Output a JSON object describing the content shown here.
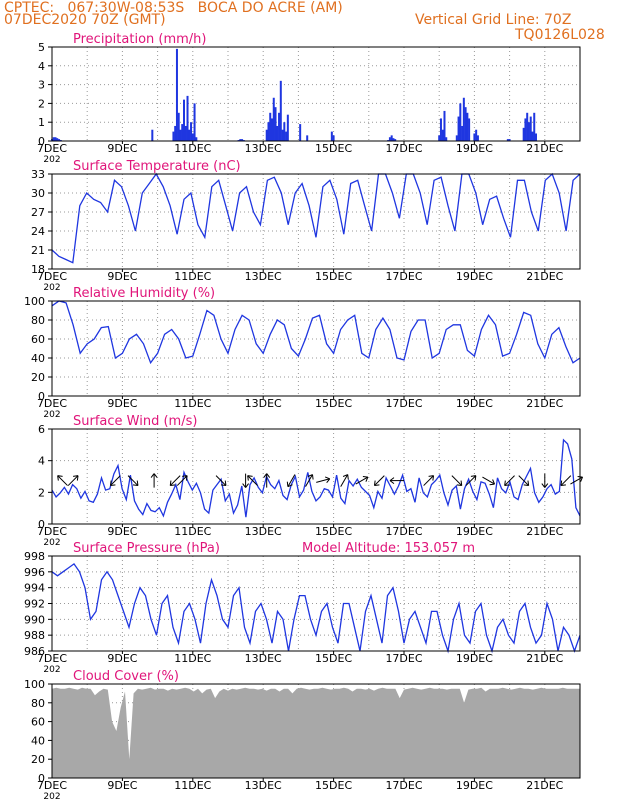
{
  "header": {
    "station_line": "CPTEC:   067:30W-08:53S   BOCA DO ACRE (AM)",
    "date_line": "07DEC2020 70Z (GMT)",
    "grid_note": "Vertical Grid Line: 70Z",
    "code": "TQ0126L028"
  },
  "x_axis": {
    "start_label": "7DEC",
    "major_ticks": [
      "9DEC",
      "11DEC",
      "13DEC",
      "15DEC",
      "17DEC",
      "19DEC",
      "21DEC"
    ],
    "year_fragment": "202",
    "range_days": [
      7,
      22
    ]
  },
  "colors": {
    "header": "#e07020",
    "panel_title": "#e0157a",
    "series": "#1f36e0",
    "cloud": "#a8a8a8",
    "grid": "#999999"
  },
  "chart_data": [
    {
      "type": "bar",
      "id": "precip",
      "title": "Precipitation (mm/h)",
      "ylim": [
        0,
        5
      ],
      "yticks": [
        "0",
        "1",
        "2",
        "3",
        "4",
        "5"
      ],
      "x": [
        7.0,
        7.05,
        7.1,
        7.15,
        7.2,
        7.25,
        9.85,
        10.45,
        10.5,
        10.55,
        10.6,
        10.65,
        10.7,
        10.75,
        10.8,
        10.85,
        10.9,
        10.95,
        11.0,
        11.05,
        11.1,
        12.3,
        12.35,
        12.4,
        12.45,
        13.1,
        13.15,
        13.2,
        13.25,
        13.3,
        13.35,
        13.4,
        13.45,
        13.5,
        13.55,
        13.6,
        13.65,
        13.7,
        14.05,
        14.25,
        14.95,
        15.0,
        16.55,
        16.6,
        16.65,
        16.7,
        16.75,
        18.0,
        18.05,
        18.1,
        18.15,
        18.2,
        18.5,
        18.55,
        18.6,
        18.65,
        18.7,
        18.75,
        18.8,
        18.85,
        19.0,
        19.05,
        19.1,
        19.95,
        20.0,
        20.4,
        20.45,
        20.5,
        20.55,
        20.6,
        20.65,
        20.7,
        20.75
      ],
      "values": [
        0.1,
        0.2,
        0.2,
        0.15,
        0.1,
        0.05,
        0.6,
        0.5,
        0.8,
        4.9,
        1.5,
        0.6,
        0.9,
        2.2,
        0.8,
        2.4,
        0.6,
        1.0,
        0.4,
        2.0,
        0.2,
        0.05,
        0.1,
        0.1,
        0.05,
        0.6,
        1.0,
        1.5,
        1.2,
        2.3,
        1.8,
        0.8,
        1.5,
        3.2,
        0.6,
        1.0,
        0.5,
        1.4,
        0.9,
        0.3,
        0.5,
        0.3,
        0.05,
        0.2,
        0.3,
        0.15,
        0.1,
        0.3,
        1.2,
        0.6,
        1.6,
        0.2,
        0.3,
        1.3,
        2.0,
        0.8,
        2.3,
        1.8,
        1.5,
        1.2,
        0.4,
        0.6,
        0.3,
        0.1,
        0.1,
        0.7,
        1.2,
        1.5,
        1.0,
        1.3,
        0.5,
        1.5,
        0.4
      ]
    },
    {
      "type": "line",
      "id": "temp",
      "title": "Surface Temperature (nC)",
      "ylim": [
        18,
        33
      ],
      "yticks": [
        "18",
        "21",
        "24",
        "27",
        "30",
        "33"
      ],
      "series": [
        {
          "values": [
            21,
            20,
            19.5,
            19,
            28,
            30,
            29,
            28.5,
            27,
            32,
            31,
            28,
            24,
            30,
            31.5,
            33,
            31,
            28,
            23.5,
            29,
            30,
            25,
            23,
            31,
            32,
            28,
            24,
            30,
            31,
            27,
            25,
            32,
            32.5,
            30,
            25,
            30,
            31.5,
            28,
            23,
            31,
            32,
            29,
            23.5,
            31.5,
            32,
            28,
            24,
            33,
            33,
            30,
            26,
            33,
            33,
            30,
            25,
            32,
            32.5,
            28,
            24,
            33,
            33,
            30,
            25,
            29,
            29.5,
            26,
            23,
            32,
            32,
            27,
            24,
            32,
            33,
            30,
            24,
            32,
            33
          ]
        }
      ]
    },
    {
      "type": "line",
      "id": "rh",
      "title": "Relative Humidity (%)",
      "ylim": [
        0,
        100
      ],
      "yticks": [
        "0",
        "20",
        "40",
        "60",
        "80",
        "100"
      ],
      "series": [
        {
          "values": [
            95,
            100,
            98,
            75,
            45,
            55,
            60,
            72,
            73,
            40,
            45,
            60,
            65,
            55,
            35,
            45,
            65,
            70,
            60,
            40,
            42,
            65,
            90,
            85,
            60,
            45,
            70,
            85,
            80,
            55,
            45,
            65,
            80,
            75,
            50,
            42,
            60,
            82,
            85,
            55,
            45,
            70,
            80,
            85,
            45,
            40,
            70,
            82,
            70,
            40,
            38,
            68,
            80,
            80,
            40,
            45,
            70,
            75,
            75,
            48,
            42,
            70,
            85,
            75,
            42,
            45,
            65,
            88,
            85,
            55,
            40,
            65,
            72,
            52,
            35,
            40
          ]
        }
      ]
    },
    {
      "type": "line",
      "id": "wind",
      "title": "Surface Wind (m/s)",
      "ylim": [
        0,
        7
      ],
      "yticks": [
        "0",
        "2",
        "4",
        "6"
      ],
      "series": [
        {
          "values": [
            2.5,
            2,
            2.3,
            2.7,
            2.2,
            2.9,
            2.6,
            1.9,
            2.4,
            1.7,
            1.6,
            2.2,
            3.4,
            2.5,
            2.6,
            3.7,
            4.3,
            2.6,
            1.8,
            3.6,
            1.7,
            1.1,
            0.7,
            1.5,
            1.0,
            0.9,
            1.2,
            0.6,
            1.6,
            2.2,
            2.9,
            1.8,
            3.8,
            3.1,
            2.5,
            3.0,
            2.3,
            1.1,
            0.8,
            2.5,
            2.9,
            3.3,
            1.7,
            2.2,
            0.8,
            1.4,
            2.8,
            0.5,
            2.9,
            3.4,
            2.7,
            2.3,
            3.5,
            2.9,
            2.6,
            3.2,
            2.1,
            1.8,
            2.9,
            3.5,
            2.0,
            2.5,
            3.8,
            2.4,
            1.7,
            2.0,
            2.6,
            2.5,
            2.0,
            3.6,
            1.9,
            1.5,
            3.2,
            2.8,
            3.3,
            2.7,
            2.4,
            2.1,
            1.2,
            2.4,
            1.9,
            3.4,
            2.8,
            2.2,
            2.8,
            3.6,
            2.4,
            2.6,
            1.6,
            3.4,
            2.3,
            2.0,
            2.9,
            3.2,
            3.6,
            2.3,
            1.4,
            2.5,
            2.8,
            1.1,
            2.6,
            3.3,
            2.4,
            1.8,
            3.1,
            3.0,
            2.2,
            1.2,
            3.4,
            2.6,
            2.3,
            3.1,
            2.0,
            1.8,
            2.9,
            3.5,
            4.1,
            2.3,
            1.6,
            2.0,
            2.6,
            2.9,
            2.2,
            2.4,
            6.2,
            5.9,
            4.8,
            1.2,
            0.6
          ]
        }
      ],
      "wind_arrows": [
        {
          "x": 7.3,
          "angle": -135
        },
        {
          "x": 7.6,
          "angle": -45
        },
        {
          "x": 8.8,
          "angle": 135
        },
        {
          "x": 9.3,
          "angle": 45
        },
        {
          "x": 9.9,
          "angle": -90
        },
        {
          "x": 10.5,
          "angle": 135
        },
        {
          "x": 10.7,
          "angle": -45
        },
        {
          "x": 11.8,
          "angle": 45
        },
        {
          "x": 12.5,
          "angle": 90
        },
        {
          "x": 12.7,
          "angle": -135
        },
        {
          "x": 13.1,
          "angle": -90
        },
        {
          "x": 13.8,
          "angle": 120
        },
        {
          "x": 14.3,
          "angle": -60
        },
        {
          "x": 14.7,
          "angle": -15
        },
        {
          "x": 15.3,
          "angle": -60
        },
        {
          "x": 15.8,
          "angle": -30
        },
        {
          "x": 16.3,
          "angle": 135
        },
        {
          "x": 16.8,
          "angle": 180
        },
        {
          "x": 17.7,
          "angle": -45
        },
        {
          "x": 18.5,
          "angle": 45
        },
        {
          "x": 18.9,
          "angle": -45
        },
        {
          "x": 19.4,
          "angle": 30
        },
        {
          "x": 20.0,
          "angle": 135
        },
        {
          "x": 20.4,
          "angle": 45
        },
        {
          "x": 21.0,
          "angle": 90
        },
        {
          "x": 21.6,
          "angle": 135
        },
        {
          "x": 21.9,
          "angle": -30
        }
      ]
    },
    {
      "type": "line",
      "id": "pressure",
      "title": "Surface Pressure (hPa)",
      "annotation": "Model Altitude: 153.057  m",
      "ylim": [
        986,
        998
      ],
      "yticks": [
        "986",
        "988",
        "990",
        "992",
        "994",
        "996",
        "998"
      ],
      "series": [
        {
          "values": [
            996,
            995.5,
            996,
            996.5,
            997,
            996,
            994,
            990,
            991,
            995,
            996,
            995,
            993,
            991,
            989,
            992,
            994,
            993,
            990,
            988,
            992,
            993,
            989,
            987,
            991,
            992,
            990,
            987,
            992,
            995,
            993,
            990,
            989,
            993,
            994,
            989,
            987,
            991,
            992,
            990,
            987,
            991,
            990,
            986,
            990,
            993,
            993,
            990,
            988,
            991,
            992,
            989,
            987,
            992,
            992,
            989,
            986,
            991,
            993,
            990,
            987,
            993,
            994,
            991,
            987,
            990,
            991,
            989,
            987,
            991,
            991,
            988,
            986,
            990,
            992,
            988,
            987,
            991,
            992,
            988,
            986,
            989,
            990,
            988,
            987,
            991,
            992,
            989,
            987,
            988,
            992,
            990,
            986,
            989,
            988,
            986,
            988
          ]
        }
      ]
    },
    {
      "type": "area",
      "id": "cloud",
      "title": "Cloud Cover (%)",
      "ylim": [
        0,
        100
      ],
      "yticks": [
        "0",
        "20",
        "40",
        "60",
        "80",
        "100"
      ],
      "series": [
        {
          "values": [
            95,
            96,
            95,
            95,
            96,
            95,
            94,
            96,
            95,
            95,
            88,
            92,
            95,
            94,
            60,
            50,
            75,
            92,
            20,
            90,
            95,
            94,
            95,
            96,
            94,
            95,
            95,
            93,
            95,
            94,
            95,
            96,
            95,
            92,
            95,
            90,
            94,
            95,
            85,
            92,
            95,
            93,
            95,
            94,
            95,
            96,
            95,
            95,
            94,
            95,
            93,
            95,
            95,
            92,
            95,
            95,
            90,
            95,
            96,
            95,
            94,
            95,
            95,
            96,
            95,
            94,
            95,
            95,
            96,
            95,
            92,
            95,
            95,
            94,
            95,
            93,
            95,
            96,
            95,
            95,
            95,
            85,
            94,
            95,
            96,
            95,
            94,
            95,
            96,
            95,
            95,
            95,
            94,
            95,
            95,
            95,
            80,
            94,
            95,
            95,
            96,
            92,
            95,
            95,
            95,
            96,
            95,
            94,
            95,
            96,
            95,
            95,
            94,
            95,
            96,
            95,
            95,
            95,
            95,
            96,
            95,
            95,
            95,
            95
          ]
        }
      ]
    }
  ]
}
